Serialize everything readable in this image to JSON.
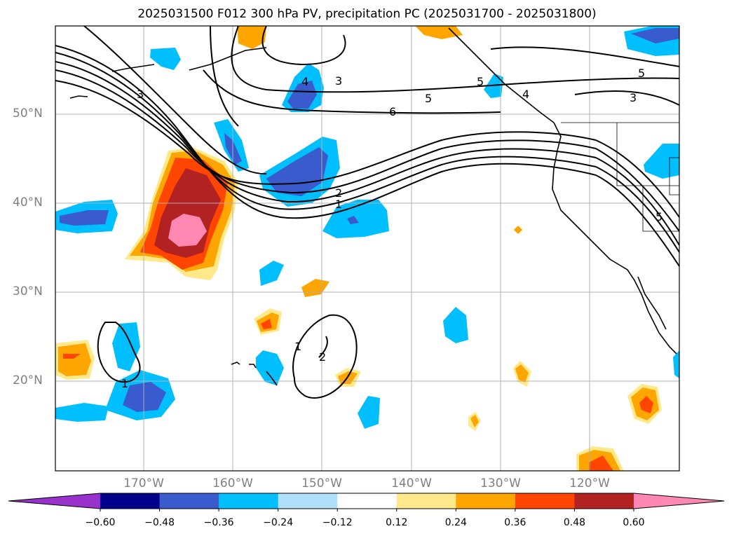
{
  "title": "2025031500 F012 300 hPa PV, precipitation PC (2025031700 - 2025031800)",
  "lat_labels": [
    "50°N",
    "40°N",
    "30°N",
    "20°N"
  ],
  "lon_labels": [
    "170°W",
    "160°W",
    "150°W",
    "140°W",
    "130°W",
    "120°W"
  ],
  "colorbar": {
    "ticks": [
      "−0.60",
      "−0.48",
      "−0.36",
      "−0.24",
      "−0.12",
      "0.12",
      "0.24",
      "0.36",
      "0.48",
      "0.60"
    ],
    "colors": [
      "#9932cc",
      "#00008b",
      "#3a5bcd",
      "#00bfff",
      "#b0e0fa",
      "#ffffff",
      "#ffe98a",
      "#ffa500",
      "#ff4500",
      "#b22222",
      "#ff88b2"
    ]
  },
  "contour_labels": [
    "1",
    "2",
    "3",
    "4",
    "5",
    "6",
    "1",
    "2",
    "1",
    "3",
    "5",
    "5",
    "3",
    "5",
    "4"
  ]
}
